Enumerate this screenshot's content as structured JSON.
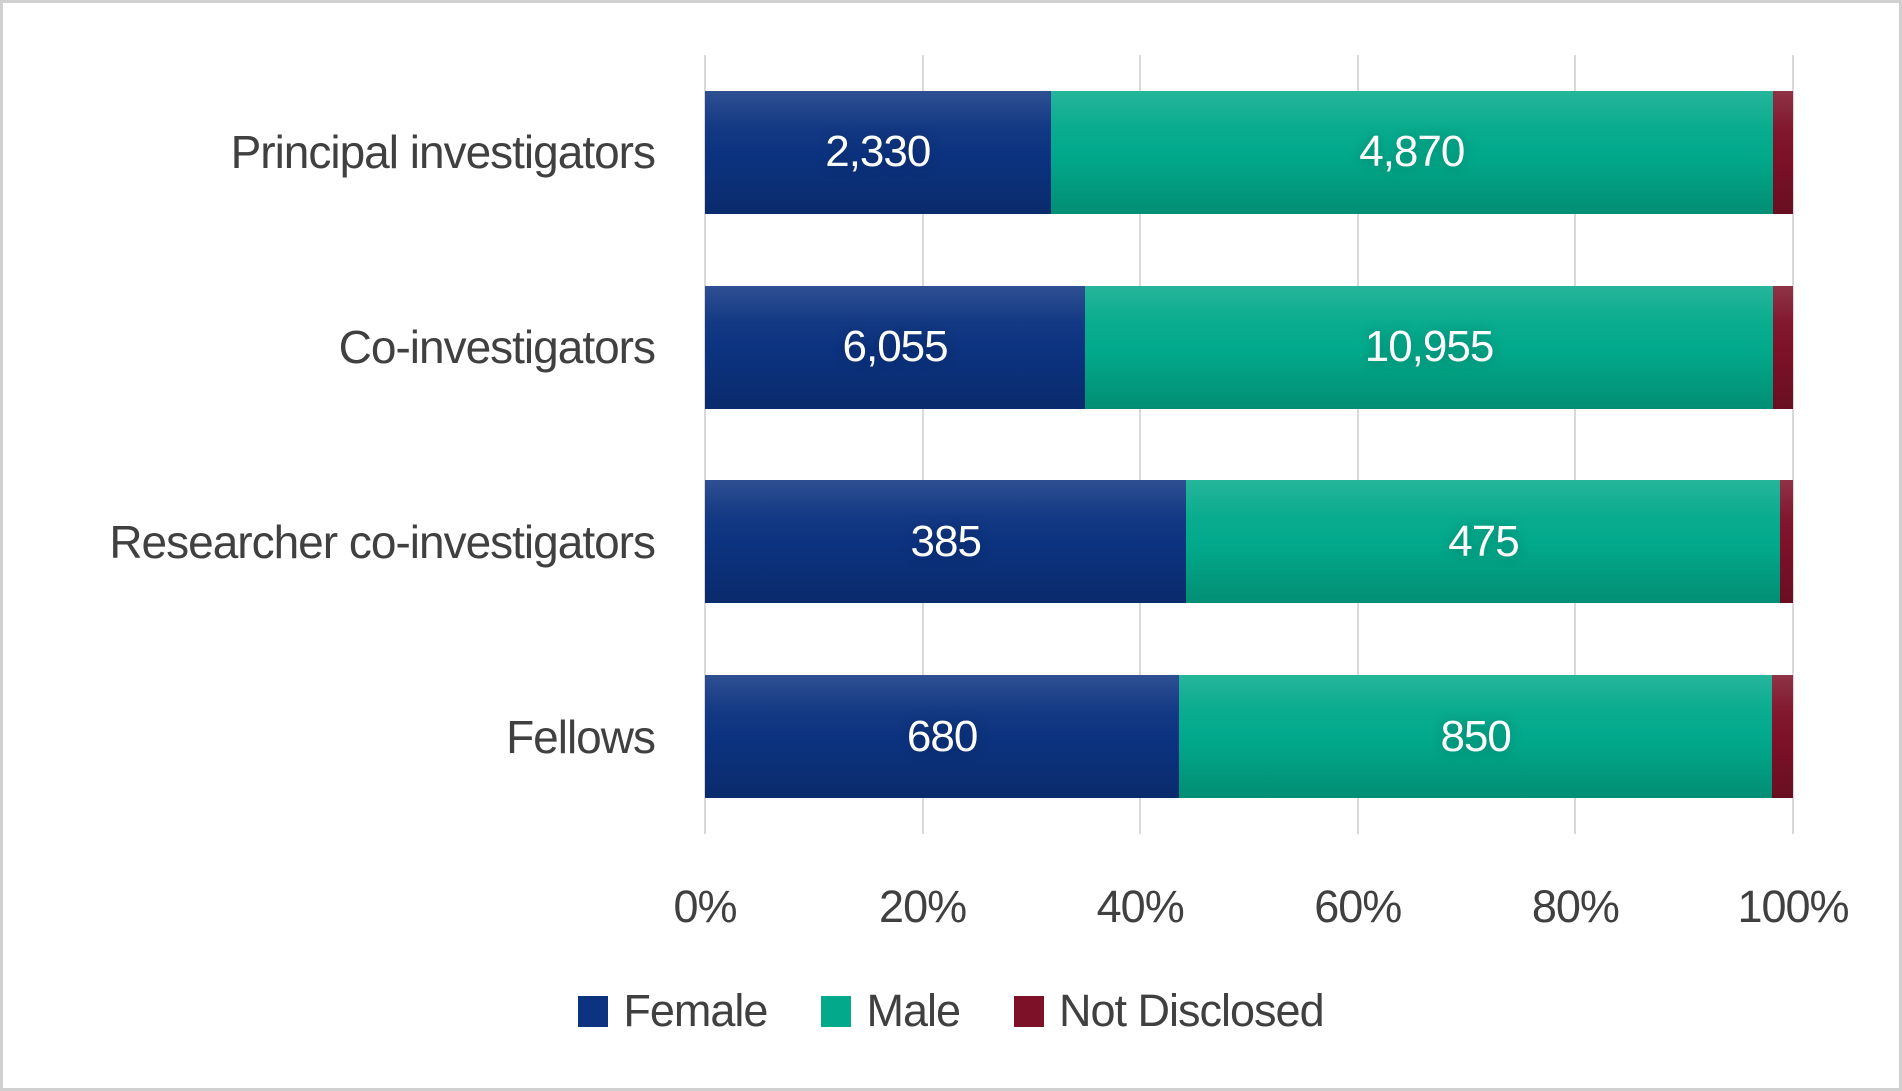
{
  "colors": {
    "female": "#0C3380",
    "male": "#02A98B",
    "not_disclosed": "#7D1128",
    "grid": "#D9D9D9",
    "axis_line": "#D9D9D9",
    "text": "#404040",
    "value_text": "#FFFFFF",
    "border": "#D0D0D0",
    "background": "#FFFFFF"
  },
  "chart_data": {
    "type": "bar",
    "subtype": "100-percent-stacked-horizontal",
    "title": "",
    "xlabel": "",
    "ylabel": "",
    "grid": true,
    "categories": [
      "Principal investigators",
      "Co-investigators",
      "Researcher co-investigators",
      "Fellows"
    ],
    "series": [
      {
        "name": "Female",
        "color": "#0C3380",
        "values": [
          2330,
          6055,
          385,
          680
        ],
        "data_labels": [
          "2,330",
          "6,055",
          "385",
          "680"
        ]
      },
      {
        "name": "Male",
        "color": "#02A98B",
        "values": [
          4870,
          10955,
          475,
          850
        ],
        "data_labels": [
          "4,870",
          "10,955",
          "475",
          "850"
        ]
      },
      {
        "name": "Not Disclosed",
        "color": "#7D1128",
        "estimated": true,
        "values": [
          135,
          320,
          10,
          30
        ],
        "data_labels": [
          "",
          "",
          "",
          ""
        ]
      }
    ],
    "x_axis": {
      "format": "percent",
      "range": [
        0,
        1
      ],
      "ticks": [
        "0%",
        "20%",
        "40%",
        "60%",
        "80%",
        "100%"
      ]
    },
    "legend": {
      "position": "bottom",
      "items": [
        "Female",
        "Male",
        "Not Disclosed"
      ]
    }
  }
}
